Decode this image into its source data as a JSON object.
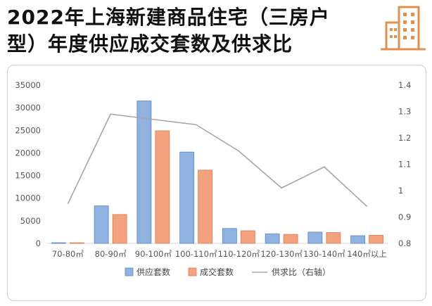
{
  "header": {
    "title_line1": "2022年上海新建商品住宅（三房户",
    "title_line2": "型）年度供应成交套数及供求比"
  },
  "icon": {
    "name": "building-icon",
    "color": "#e0914f"
  },
  "chart_data": {
    "type": "bar",
    "categories": [
      "70-80㎡",
      "80-90㎡",
      "90-100㎡",
      "100-110㎡",
      "110-120㎡",
      "120-130㎡",
      "130-140㎡",
      "140㎡以上"
    ],
    "series": [
      {
        "name": "供应套数",
        "type": "bar",
        "axis": "left",
        "color": "#8fb2e0",
        "values": [
          150,
          8300,
          31500,
          20200,
          3300,
          2100,
          2500,
          1700
        ]
      },
      {
        "name": "成交套数",
        "type": "bar",
        "axis": "left",
        "color": "#f2a27e",
        "values": [
          150,
          6400,
          24900,
          16200,
          2800,
          2000,
          2400,
          1800
        ]
      },
      {
        "name": "供求比（右轴）",
        "type": "line",
        "axis": "right",
        "color": "#a6a6a6",
        "values": [
          0.95,
          1.29,
          1.27,
          1.25,
          1.15,
          1.01,
          1.09,
          0.94
        ]
      }
    ],
    "y_left": {
      "min": 0,
      "max": 35000,
      "ticks": [
        "0",
        "5000",
        "10000",
        "15000",
        "20000",
        "25000",
        "30000",
        "35000"
      ]
    },
    "y_right": {
      "min": 0.8,
      "max": 1.4,
      "ticks": [
        "0.8",
        "0.9",
        "1",
        "1.1",
        "1.2",
        "1.3",
        "1.4"
      ]
    },
    "grid": false,
    "legend_position": "bottom"
  }
}
